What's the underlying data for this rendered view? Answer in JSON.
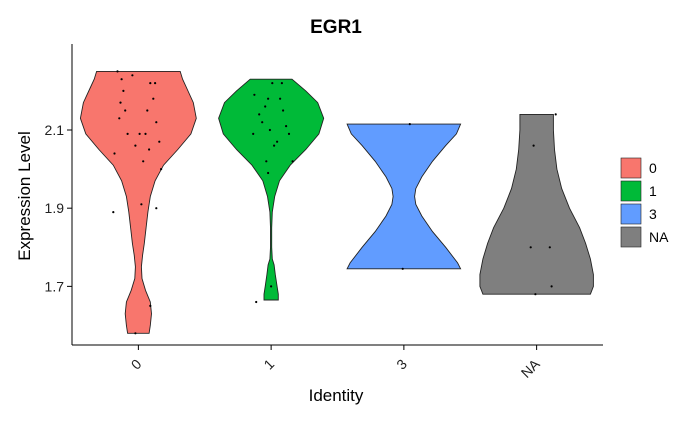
{
  "chart_data": {
    "type": "violin",
    "title": "EGR1",
    "xlabel": "Identity",
    "ylabel": "Expression Level",
    "ylim": [
      1.55,
      2.32
    ],
    "yticks": [
      1.7,
      1.9,
      2.1
    ],
    "ytick_labels": [
      "1.7",
      "1.9",
      "2.1"
    ],
    "categories": [
      "0",
      "1",
      "3",
      "NA"
    ],
    "legend": {
      "placement": "right",
      "entries": [
        "0",
        "1",
        "3",
        "NA"
      ]
    },
    "grid": false,
    "series": [
      {
        "category": "0",
        "color": "#F8766D",
        "range": [
          1.58,
          2.25
        ],
        "profile": [
          [
            1.58,
            0.18
          ],
          [
            1.6,
            0.2
          ],
          [
            1.63,
            0.22
          ],
          [
            1.66,
            0.2
          ],
          [
            1.69,
            0.12
          ],
          [
            1.72,
            0.06
          ],
          [
            1.75,
            0.05
          ],
          [
            1.78,
            0.07
          ],
          [
            1.81,
            0.1
          ],
          [
            1.85,
            0.13
          ],
          [
            1.89,
            0.16
          ],
          [
            1.93,
            0.2
          ],
          [
            1.97,
            0.28
          ],
          [
            2.01,
            0.42
          ],
          [
            2.05,
            0.66
          ],
          [
            2.09,
            0.88
          ],
          [
            2.13,
            0.97
          ],
          [
            2.17,
            0.92
          ],
          [
            2.21,
            0.8
          ],
          [
            2.23,
            0.74
          ],
          [
            2.25,
            0.7
          ]
        ],
        "points": [
          [
            -0.35,
            2.25
          ],
          [
            -0.3,
            2.17
          ],
          [
            -0.25,
            2.2
          ],
          [
            -0.18,
            2.09
          ],
          [
            -0.1,
            2.24
          ],
          [
            -0.05,
            2.06
          ],
          [
            0.02,
            2.09
          ],
          [
            0.08,
            2.02
          ],
          [
            0.12,
            2.09
          ],
          [
            0.2,
            2.22
          ],
          [
            0.25,
            2.18
          ],
          [
            0.3,
            2.12
          ],
          [
            0.35,
            2.07
          ],
          [
            -0.4,
            2.04
          ],
          [
            -0.32,
            2.13
          ],
          [
            -0.22,
            2.15
          ],
          [
            0.18,
            2.05
          ],
          [
            0.28,
            2.22
          ],
          [
            0.38,
            2.0
          ],
          [
            -0.42,
            1.89
          ],
          [
            0.05,
            1.91
          ],
          [
            0.3,
            1.9
          ],
          [
            0.2,
            1.65
          ],
          [
            -0.05,
            1.58
          ],
          [
            -0.28,
            2.23
          ],
          [
            0.15,
            2.15
          ]
        ]
      },
      {
        "category": "1",
        "color": "#00BA38",
        "range": [
          1.665,
          2.23
        ],
        "profile": [
          [
            1.665,
            0.12
          ],
          [
            1.68,
            0.12
          ],
          [
            1.7,
            0.1
          ],
          [
            1.73,
            0.07
          ],
          [
            1.755,
            0.05
          ],
          [
            1.77,
            0.02
          ],
          [
            1.8,
            0.01
          ],
          [
            1.85,
            0.01
          ],
          [
            1.89,
            0.02
          ],
          [
            1.93,
            0.06
          ],
          [
            1.97,
            0.14
          ],
          [
            2.01,
            0.32
          ],
          [
            2.05,
            0.58
          ],
          [
            2.09,
            0.8
          ],
          [
            2.13,
            0.88
          ],
          [
            2.17,
            0.78
          ],
          [
            2.2,
            0.58
          ],
          [
            2.23,
            0.35
          ]
        ],
        "points": [
          [
            -0.28,
            2.19
          ],
          [
            -0.2,
            2.14
          ],
          [
            -0.15,
            2.12
          ],
          [
            -0.1,
            2.16
          ],
          [
            -0.05,
            2.18
          ],
          [
            -0.02,
            2.1
          ],
          [
            0.02,
            2.22
          ],
          [
            0.1,
            2.07
          ],
          [
            0.15,
            2.18
          ],
          [
            0.2,
            2.15
          ],
          [
            0.25,
            2.11
          ],
          [
            0.3,
            2.09
          ],
          [
            0.36,
            2.02
          ],
          [
            0.05,
            2.06
          ],
          [
            -0.08,
            2.02
          ],
          [
            -0.3,
            2.09
          ],
          [
            0.18,
            2.22
          ],
          [
            -0.05,
            1.99
          ],
          [
            -0.25,
            1.66
          ],
          [
            0.0,
            1.7
          ]
        ]
      },
      {
        "category": "3",
        "color": "#619CFF",
        "range": [
          1.745,
          2.115
        ],
        "profile": [
          [
            1.745,
            0.95
          ],
          [
            1.76,
            0.9
          ],
          [
            1.8,
            0.7
          ],
          [
            1.84,
            0.48
          ],
          [
            1.88,
            0.3
          ],
          [
            1.91,
            0.2
          ],
          [
            1.93,
            0.18
          ],
          [
            1.95,
            0.2
          ],
          [
            1.98,
            0.3
          ],
          [
            2.02,
            0.48
          ],
          [
            2.06,
            0.7
          ],
          [
            2.09,
            0.88
          ],
          [
            2.115,
            0.95
          ]
        ],
        "points": [
          [
            0.1,
            2.115
          ],
          [
            -0.02,
            1.745
          ]
        ]
      },
      {
        "category": "NA",
        "color": "#7F7F7F",
        "range": [
          1.68,
          2.14
        ],
        "profile": [
          [
            1.68,
            0.9
          ],
          [
            1.7,
            0.95
          ],
          [
            1.73,
            0.95
          ],
          [
            1.77,
            0.9
          ],
          [
            1.81,
            0.82
          ],
          [
            1.85,
            0.72
          ],
          [
            1.9,
            0.55
          ],
          [
            1.95,
            0.42
          ],
          [
            2.0,
            0.34
          ],
          [
            2.05,
            0.3
          ],
          [
            2.1,
            0.28
          ],
          [
            2.14,
            0.28
          ]
        ],
        "points": [
          [
            0.32,
            2.14
          ],
          [
            -0.05,
            2.06
          ],
          [
            -0.1,
            1.8
          ],
          [
            0.22,
            1.8
          ],
          [
            0.25,
            1.7
          ],
          [
            -0.02,
            1.68
          ]
        ]
      }
    ]
  }
}
